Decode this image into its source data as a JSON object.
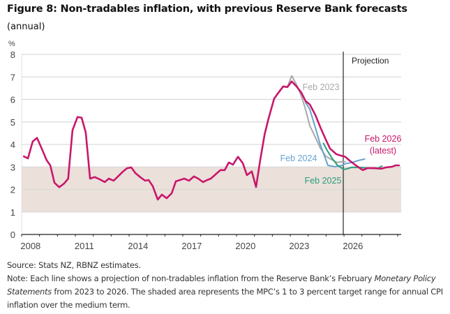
{
  "header": {
    "title": "Figure 8: Non-tradables inflation, with previous Reserve Bank forecasts",
    "subtitle": "(annual)"
  },
  "colors": {
    "latest": "#c8176b",
    "feb2023": "#a8a8a8",
    "feb2024": "#66a3d2",
    "feb2025": "#2a9d7f",
    "target_band": "#ebe0da",
    "grid": "#d9d9d9",
    "axis": "#222222"
  },
  "chart_data": {
    "type": "line",
    "title": "Figure 8: Non-tradables inflation, with previous Reserve Bank forecasts",
    "subtitle": "(annual)",
    "ylabel": "%",
    "xlabel": "",
    "ylim": [
      0,
      8
    ],
    "yticks": [
      0,
      1,
      2,
      3,
      4,
      5,
      6,
      7,
      8
    ],
    "xlim": [
      2008,
      2029.2
    ],
    "xtick_labels": [
      "2008",
      "2011",
      "2014",
      "2017",
      "2020",
      "2023",
      "2026"
    ],
    "grid": true,
    "target_band": {
      "label": "MPC 1 to 3 percent target range",
      "low": 1,
      "high": 3
    },
    "projection_start": 2025.96,
    "projection_label": "Projection",
    "series": [
      {
        "name": "Feb 2026 (latest)",
        "label_lines": [
          "Feb 2026",
          "(latest)"
        ],
        "color_key": "latest",
        "x": [
          2008.12,
          2008.35,
          2008.62,
          2008.86,
          2009.13,
          2009.4,
          2009.6,
          2009.83,
          2010.1,
          2010.38,
          2010.6,
          2010.84,
          2011.12,
          2011.35,
          2011.58,
          2011.82,
          2012.09,
          2012.36,
          2012.64,
          2012.87,
          2013.14,
          2013.41,
          2013.69,
          2013.88,
          2014.12,
          2014.35,
          2014.62,
          2014.9,
          2015.09,
          2015.32,
          2015.6,
          2015.83,
          2016.1,
          2016.38,
          2016.61,
          2016.84,
          2017.08,
          2017.35,
          2017.62,
          2017.86,
          2018.13,
          2018.36,
          2018.56,
          2018.83,
          2019.1,
          2019.34,
          2019.57,
          2019.8,
          2020.08,
          2020.35,
          2020.58,
          2020.85,
          2021.09,
          2021.32,
          2021.57,
          2021.79,
          2022.1,
          2022.34,
          2022.61,
          2022.84,
          2023.08,
          2023.35,
          2023.62,
          2023.85,
          2024.09,
          2024.4,
          2024.67,
          2024.98,
          2025.22,
          2025.57,
          2025.8,
          2026.07,
          2026.35,
          2026.66,
          2027.05,
          2027.32,
          2027.71,
          2028.1,
          2028.34,
          2028.69,
          2028.88,
          2029.07
        ],
        "values": [
          3.47,
          3.38,
          4.13,
          4.29,
          3.8,
          3.3,
          3.07,
          2.3,
          2.1,
          2.27,
          2.48,
          4.63,
          5.22,
          5.19,
          4.53,
          2.48,
          2.55,
          2.45,
          2.33,
          2.48,
          2.39,
          2.6,
          2.82,
          2.94,
          2.98,
          2.73,
          2.55,
          2.39,
          2.42,
          2.15,
          1.55,
          1.77,
          1.61,
          1.83,
          2.36,
          2.42,
          2.48,
          2.39,
          2.58,
          2.48,
          2.33,
          2.42,
          2.48,
          2.67,
          2.86,
          2.86,
          3.2,
          3.1,
          3.45,
          3.17,
          2.64,
          2.8,
          2.11,
          3.29,
          4.45,
          5.16,
          6.03,
          6.3,
          6.58,
          6.55,
          6.8,
          6.58,
          6.3,
          5.93,
          5.78,
          5.31,
          4.78,
          4.22,
          3.82,
          3.57,
          3.51,
          3.45,
          3.26,
          3.07,
          2.86,
          2.95,
          2.95,
          2.92,
          2.98,
          3.01,
          3.07,
          3.07
        ]
      },
      {
        "name": "Feb 2023",
        "label_lines": [
          "Feb 2023"
        ],
        "color_key": "feb2023",
        "x": [
          2022.84,
          2023.08,
          2023.35,
          2023.62,
          2023.85,
          2024.09,
          2024.4,
          2024.67,
          2024.98,
          2025.25,
          2025.6,
          2025.88,
          2026.07
        ],
        "values": [
          6.55,
          7.05,
          6.65,
          6.15,
          5.56,
          4.84,
          4.32,
          3.85,
          3.48,
          3.35,
          3.2,
          3.23,
          3.23
        ]
      },
      {
        "name": "Feb 2024",
        "label_lines": [
          "Feb 2024"
        ],
        "color_key": "feb2024",
        "x": [
          2023.85,
          2024.09,
          2024.4,
          2024.67,
          2025.1,
          2025.5,
          2025.88,
          2026.07,
          2026.46,
          2026.81,
          2027.15
        ],
        "values": [
          5.87,
          5.56,
          4.75,
          4.01,
          3.07,
          3.01,
          3.07,
          3.14,
          3.2,
          3.29,
          3.35
        ]
      },
      {
        "name": "Feb 2025",
        "label_lines": [
          "Feb 2025"
        ],
        "color_key": "feb2025",
        "x": [
          2024.85,
          2025.05,
          2025.33,
          2025.64,
          2025.99,
          2026.18,
          2026.42,
          2026.81,
          2027.36,
          2027.86,
          2028.12
        ],
        "values": [
          4.05,
          3.75,
          3.39,
          3.07,
          2.89,
          2.92,
          2.98,
          2.98,
          2.95,
          2.92,
          3.04
        ]
      }
    ]
  },
  "footer": {
    "source": "Source: Stats NZ, RBNZ estimates.",
    "note_part1": "Note: Each line shows a projection of non-tradables inflation from the Reserve Bank’s February ",
    "note_italic1": "Monetary Policy Statements",
    "note_part2": " from 2023 to 2026. The shaded area represents the MPC’s 1 to 3 percent target range for annual CPI inflation over the medium term."
  }
}
